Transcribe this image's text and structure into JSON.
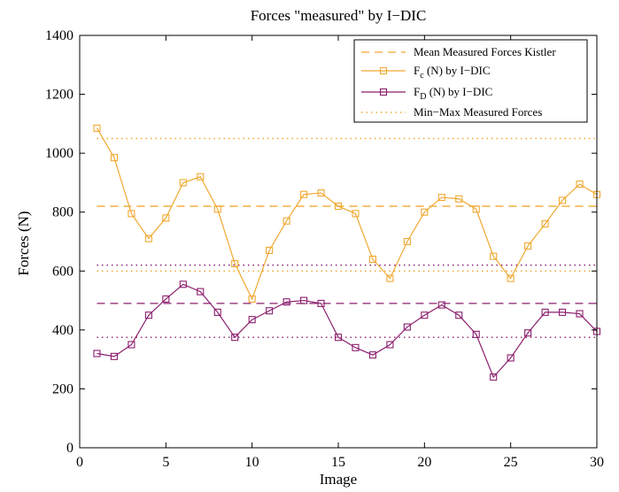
{
  "chart_data": {
    "type": "line",
    "title": "Forces \"measured\" by I−DIC",
    "xlabel": "Image",
    "ylabel": "Forces (N)",
    "xlim": [
      0,
      30
    ],
    "ylim": [
      0,
      1400
    ],
    "xticks": [
      0,
      5,
      10,
      15,
      20,
      25,
      30
    ],
    "yticks": [
      0,
      200,
      400,
      600,
      800,
      1000,
      1200,
      1400
    ],
    "grid": false,
    "legend_position": "top-right",
    "x": [
      1,
      2,
      3,
      4,
      5,
      6,
      7,
      8,
      9,
      10,
      11,
      12,
      13,
      14,
      15,
      16,
      17,
      18,
      19,
      20,
      21,
      22,
      23,
      24,
      25,
      26,
      27,
      28,
      29,
      30
    ],
    "series": [
      {
        "name": "F_c (N) by I−DIC",
        "label_main": "F",
        "label_sub": "c",
        "label_rest": " (N) by I−DIC",
        "color": "#f0a830",
        "marker": "square",
        "values": [
          1085,
          985,
          795,
          710,
          780,
          900,
          920,
          810,
          625,
          505,
          670,
          770,
          860,
          865,
          820,
          795,
          640,
          575,
          700,
          800,
          850,
          845,
          810,
          650,
          575,
          685,
          760,
          840,
          895,
          860
        ]
      },
      {
        "name": "F_D (N) by I−DIC",
        "label_main": "F",
        "label_sub": "D",
        "label_rest": " (N) by I−DIC",
        "color": "#8b1e6e",
        "marker": "square",
        "values": [
          320,
          310,
          350,
          450,
          505,
          555,
          530,
          460,
          375,
          435,
          465,
          495,
          500,
          490,
          375,
          340,
          315,
          350,
          410,
          450,
          485,
          450,
          385,
          240,
          305,
          390,
          460,
          460,
          455,
          395
        ]
      }
    ],
    "reference_lines": [
      {
        "name": "Mean Measured Forces Kistler",
        "style": "dashed",
        "color": "#f0a830",
        "y": 820
      },
      {
        "name": "Mean Measured Forces Kistler (F_D)",
        "style": "dashed",
        "color": "#8b1e6e",
        "y": 490
      },
      {
        "name": "Min−Max Measured Forces",
        "style": "dotted",
        "color": "#f0a830",
        "y": 1050
      },
      {
        "name": "Min−Max Measured Forces (F_c min)",
        "style": "dotted",
        "color": "#f0a830",
        "y": 600
      },
      {
        "name": "Min−Max Measured Forces (F_D max)",
        "style": "dotted",
        "color": "#8b1e6e",
        "y": 620
      },
      {
        "name": "Min−Max Measured Forces (F_D min)",
        "style": "dotted",
        "color": "#8b1e6e",
        "y": 375
      }
    ],
    "legend": [
      {
        "label": "Mean Measured Forces Kistler",
        "kind": "dashed",
        "color": "#f0a830"
      },
      {
        "label_main": "F",
        "label_sub": "c",
        "label_rest": " (N) by I−DIC",
        "kind": "marker-line",
        "color": "#f0a830"
      },
      {
        "label_main": "F",
        "label_sub": "D",
        "label_rest": " (N) by I−DIC",
        "kind": "marker-line",
        "color": "#8b1e6e"
      },
      {
        "label": "Min−Max Measured Forces",
        "kind": "dotted",
        "color": "#f0a830"
      }
    ]
  }
}
